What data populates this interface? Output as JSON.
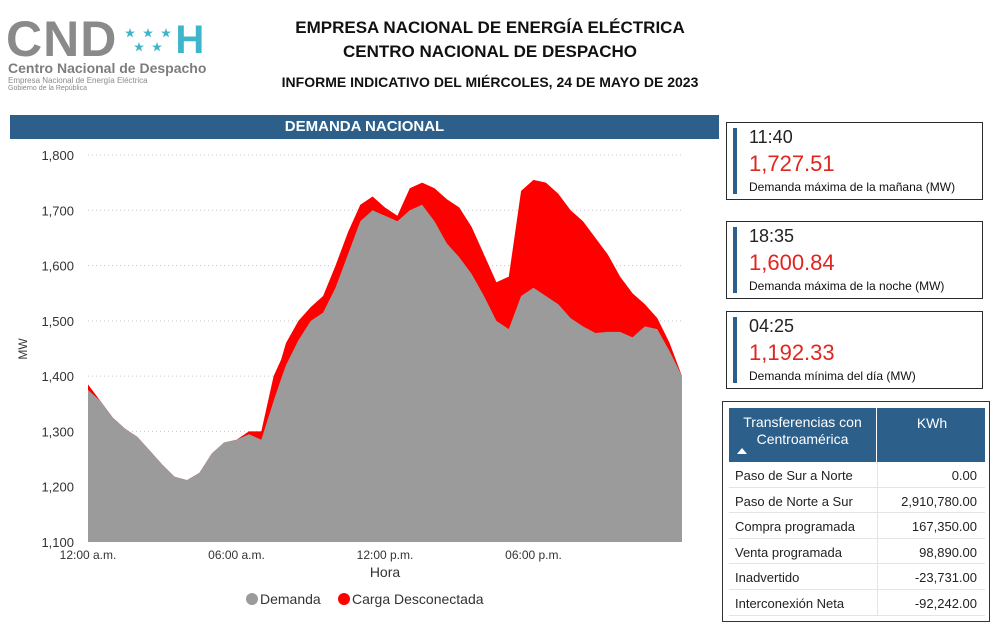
{
  "logo": {
    "mark": "CND",
    "h": "H",
    "line1": "Centro Nacional de Despacho",
    "line2": "Empresa Nacional de Energía Eléctrica",
    "line3": "Gobierno de la República"
  },
  "header": {
    "title1": "EMPRESA NACIONAL DE ENERGÍA ELÉCTRICA",
    "title2": "CENTRO NACIONAL DE DESPACHO",
    "report": "INFORME INDICATIVO DEL MIÉRCOLES, 24 DE MAYO DE 2023"
  },
  "colors": {
    "accent": "#2c5f8a",
    "demand": "#9b9b9b",
    "disconnected": "#ff0000",
    "value_red": "#e0261f"
  },
  "kpis": [
    {
      "time": "11:40",
      "value": "1,727.51",
      "label": "Demanda máxima de la mañana (MW)"
    },
    {
      "time": "18:35",
      "value": "1,600.84",
      "label": "Demanda máxima de la noche (MW)"
    },
    {
      "time": "04:25",
      "value": "1,192.33",
      "label": "Demanda mínima del día (MW)"
    }
  ],
  "transfers": {
    "header_label": "Transferencias con Centroamérica",
    "header_unit": "KWh",
    "rows": [
      {
        "label": "Paso de Sur a Norte",
        "value": "0.00"
      },
      {
        "label": "Paso de Norte a Sur",
        "value": "2,910,780.00"
      },
      {
        "label": "Compra programada",
        "value": "167,350.00"
      },
      {
        "label": "Venta programada",
        "value": "98,890.00"
      },
      {
        "label": "Inadvertido",
        "value": "-23,731.00"
      },
      {
        "label": "Interconexión Neta",
        "value": "-92,242.00"
      }
    ]
  },
  "chart_data": {
    "type": "area",
    "title": "DEMANDA NACIONAL",
    "xlabel": "Hora",
    "ylabel": "MW",
    "x_ticks": [
      "12:00 a.m.",
      "06:00 a.m.",
      "12:00 p.m.",
      "06:00 p.m."
    ],
    "y_ticks": [
      "1,100",
      "1,200",
      "1,300",
      "1,400",
      "1,500",
      "1,600",
      "1,700",
      "1,800"
    ],
    "ylim": [
      1100,
      1800
    ],
    "xlim_hours": [
      0,
      24
    ],
    "grid": true,
    "legend_position": "bottom",
    "x_hours": [
      0,
      0.5,
      1,
      1.5,
      2,
      2.5,
      3,
      3.5,
      4,
      4.5,
      5,
      5.5,
      6,
      6.5,
      7,
      7.5,
      7.8,
      8,
      8.5,
      9,
      9.5,
      10,
      10.5,
      11,
      11.5,
      12,
      12.5,
      13,
      13.5,
      14,
      14.5,
      15,
      15.5,
      16,
      16.5,
      17,
      17.5,
      18,
      18.5,
      19,
      19.5,
      20,
      20.5,
      21,
      21.5,
      22,
      22.5,
      23,
      23.5,
      24
    ],
    "series": [
      {
        "name": "Demanda",
        "values": [
          1375,
          1355,
          1325,
          1305,
          1290,
          1265,
          1240,
          1218,
          1212,
          1225,
          1260,
          1280,
          1285,
          1295,
          1285,
          1355,
          1395,
          1420,
          1465,
          1500,
          1515,
          1560,
          1620,
          1680,
          1700,
          1690,
          1680,
          1700,
          1710,
          1680,
          1640,
          1615,
          1585,
          1545,
          1500,
          1485,
          1545,
          1560,
          1545,
          1530,
          1505,
          1490,
          1478,
          1480,
          1480,
          1470,
          1490,
          1485,
          1445,
          1400
        ]
      },
      {
        "name": "Carga Desconectada",
        "values": [
          1385,
          1355,
          1325,
          1305,
          1290,
          1265,
          1240,
          1218,
          1212,
          1225,
          1260,
          1280,
          1285,
          1300,
          1300,
          1400,
          1430,
          1460,
          1500,
          1525,
          1545,
          1600,
          1660,
          1710,
          1725,
          1705,
          1690,
          1740,
          1750,
          1740,
          1720,
          1705,
          1670,
          1620,
          1570,
          1580,
          1735,
          1755,
          1750,
          1730,
          1700,
          1680,
          1650,
          1620,
          1580,
          1550,
          1530,
          1505,
          1460,
          1400
        ]
      }
    ]
  }
}
